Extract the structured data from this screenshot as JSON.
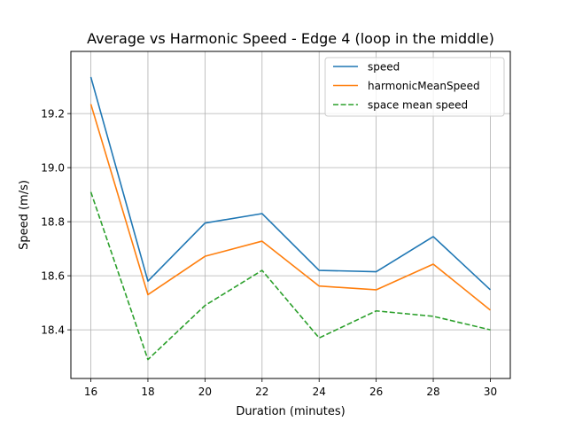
{
  "chart_data": {
    "type": "line",
    "title": "Average vs Harmonic Speed - Edge 4 (loop in the middle)",
    "xlabel": "Duration (minutes)",
    "ylabel": "Speed (m/s)",
    "x": [
      16,
      18,
      20,
      22,
      24,
      26,
      28,
      30
    ],
    "xlim": [
      15.3,
      30.7
    ],
    "ylim": [
      18.22,
      19.43
    ],
    "xticks": [
      16,
      18,
      20,
      22,
      24,
      26,
      28,
      30
    ],
    "xtick_labels": [
      "16",
      "18",
      "20",
      "22",
      "24",
      "26",
      "28",
      "30"
    ],
    "yticks": [
      18.4,
      18.6,
      18.8,
      19.0,
      19.2
    ],
    "ytick_labels": [
      "18.4",
      "18.6",
      "18.8",
      "19.0",
      "19.2"
    ],
    "grid": true,
    "legend_position": "top-right",
    "series": [
      {
        "name": "speed",
        "color": "#1f77b4",
        "dash": "solid",
        "values": [
          19.335,
          18.58,
          18.795,
          18.83,
          18.62,
          18.615,
          18.745,
          18.548
        ]
      },
      {
        "name": "harmonicMeanSpeed",
        "color": "#ff7f0e",
        "dash": "solid",
        "values": [
          19.235,
          18.53,
          18.672,
          18.728,
          18.562,
          18.548,
          18.643,
          18.473
        ]
      },
      {
        "name": "space mean speed",
        "color": "#2ca02c",
        "dash": "dashed",
        "values": [
          18.91,
          18.29,
          18.49,
          18.62,
          18.37,
          18.47,
          18.45,
          18.4
        ]
      }
    ]
  }
}
